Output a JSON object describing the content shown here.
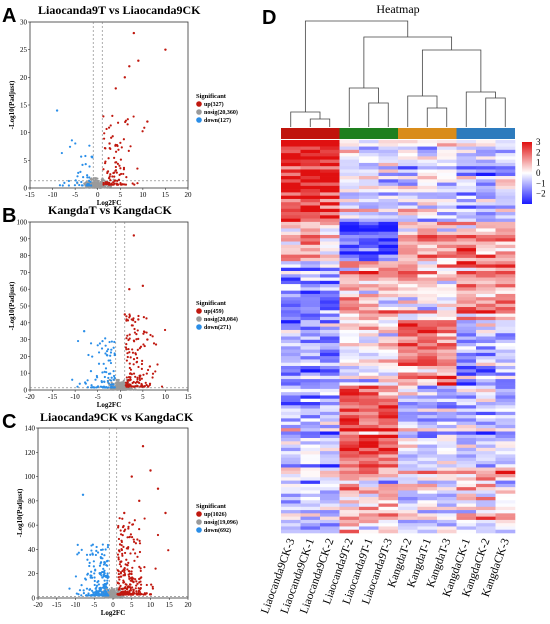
{
  "chart_data": [
    {
      "panel": "A",
      "type": "scatter",
      "title": "Liaocanda9T vs Liaocanda9CK",
      "xlabel": "Log2FC",
      "ylabel": "-Log10(Padjust)",
      "xlim": [
        -15,
        20
      ],
      "ylim": [
        0,
        30
      ],
      "xticks": [
        -15,
        -10,
        -5,
        0,
        5,
        10,
        15,
        20
      ],
      "yticks": [
        0,
        5,
        10,
        15,
        20,
        25,
        30
      ],
      "threshold_lines": {
        "x": [
          -1,
          1
        ],
        "y": 1.3
      },
      "legend": {
        "title": "Significant",
        "placement": "right",
        "items": [
          {
            "key": "up",
            "label": "up(327)",
            "color": "#c0180f",
            "count": 327
          },
          {
            "key": "nosig",
            "label": "nosig(20,360)",
            "color": "#9a9a9a",
            "count": 20360
          },
          {
            "key": "down",
            "label": "down(127)",
            "color": "#2a8ee8",
            "count": 127
          }
        ]
      },
      "highlight_points": [
        {
          "x": 8,
          "y": 28
        },
        {
          "x": 15,
          "y": 25
        },
        {
          "x": 6,
          "y": 20
        },
        {
          "x": 7,
          "y": 22
        },
        {
          "x": 9,
          "y": 23
        },
        {
          "x": -9,
          "y": 14
        },
        {
          "x": 4,
          "y": 18
        },
        {
          "x": 11,
          "y": 12
        }
      ]
    },
    {
      "panel": "B",
      "type": "scatter",
      "title": "KangdaT vs KangdaCK",
      "xlabel": "Log2FC",
      "ylabel": "-Log10(Padjust)",
      "xlim": [
        -20,
        15
      ],
      "ylim": [
        0,
        100
      ],
      "xticks": [
        -20,
        -15,
        -10,
        -5,
        0,
        5,
        10,
        15
      ],
      "yticks": [
        0,
        10,
        20,
        30,
        40,
        50,
        60,
        70,
        80,
        90,
        100
      ],
      "threshold_lines": {
        "x": [
          -1,
          1
        ],
        "y": 1.3
      },
      "legend": {
        "title": "Significant",
        "placement": "right",
        "items": [
          {
            "key": "up",
            "label": "up(459)",
            "color": "#c0180f",
            "count": 459
          },
          {
            "key": "nosig",
            "label": "nosig(20,084)",
            "color": "#9a9a9a",
            "count": 20084
          },
          {
            "key": "down",
            "label": "down(271)",
            "color": "#2a8ee8",
            "count": 271
          }
        ]
      },
      "highlight_points": [
        {
          "x": 3,
          "y": 92
        },
        {
          "x": 2,
          "y": 60
        },
        {
          "x": 5,
          "y": 62
        },
        {
          "x": 4,
          "y": 42
        },
        {
          "x": -8,
          "y": 35
        },
        {
          "x": 1,
          "y": 45
        },
        {
          "x": 6,
          "y": 30
        }
      ]
    },
    {
      "panel": "C",
      "type": "scatter",
      "title": "Liaocanda9CK vs KangdaCK",
      "xlabel": "Log2FC",
      "ylabel": "-Log10(Padjust)",
      "xlim": [
        -20,
        20
      ],
      "ylim": [
        0,
        140
      ],
      "xticks": [
        -20,
        -15,
        -10,
        -5,
        0,
        5,
        10,
        15,
        20
      ],
      "yticks": [
        0,
        20,
        40,
        60,
        80,
        100,
        120,
        140
      ],
      "threshold_lines": {
        "x": [
          -1,
          1
        ],
        "y": 1.3
      },
      "legend": {
        "title": "Significant",
        "placement": "right",
        "items": [
          {
            "key": "up",
            "label": "up(1026)",
            "color": "#c0180f",
            "count": 1026
          },
          {
            "key": "nosig",
            "label": "nosig(19,096)",
            "color": "#9a9a9a",
            "count": 19096
          },
          {
            "key": "down",
            "label": "down(692)",
            "color": "#2a8ee8",
            "count": 692
          }
        ]
      },
      "highlight_points": [
        {
          "x": 8,
          "y": 125
        },
        {
          "x": 10,
          "y": 105
        },
        {
          "x": 5,
          "y": 100
        },
        {
          "x": -8,
          "y": 85
        },
        {
          "x": 12,
          "y": 90
        },
        {
          "x": 7,
          "y": 80
        },
        {
          "x": 14,
          "y": 70
        },
        {
          "x": 3,
          "y": 70
        }
      ]
    },
    {
      "panel": "D",
      "type": "heatmap",
      "title": "Heatmap",
      "samples": [
        "Liaocanda9CK-3",
        "Liaocanda9CK-1",
        "Liaocanda9CK-2",
        "Liaocanda9T-2",
        "Liaocanda9T-1",
        "Liaocanda9T-3",
        "KangdaT-2",
        "KangdaT-1",
        "KangdaT-3",
        "KangdaCK-1",
        "KangdaCK-2",
        "KangdaCK-3"
      ],
      "groups": [
        {
          "color": "#c0140c",
          "columns": [
            0,
            1,
            2
          ]
        },
        {
          "color": "#1e7f1e",
          "columns": [
            3,
            4,
            5
          ]
        },
        {
          "color": "#d98c1a",
          "columns": [
            6,
            7,
            8
          ]
        },
        {
          "color": "#2d7bbd",
          "columns": [
            9,
            10,
            11
          ]
        }
      ],
      "color_scale": {
        "min": -3,
        "max": 3,
        "ticks": [
          3,
          2,
          1,
          0,
          -1,
          -2
        ],
        "tick_labels": [
          "3",
          "2",
          "1",
          "0",
          "−1",
          "−2"
        ],
        "low_color": "#1a1aff",
        "mid_color": "#ffffff",
        "high_color": "#e01010"
      },
      "legend_placement": "top-right"
    }
  ]
}
